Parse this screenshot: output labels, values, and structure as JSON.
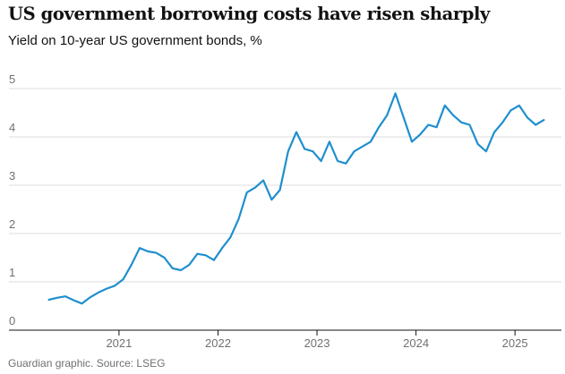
{
  "title": "US government borrowing costs have risen sharply",
  "subtitle": "Yield on 10-year US government bonds, %",
  "source": "Guardian graphic. Source: LSEG",
  "chart_data": {
    "type": "line",
    "title": "US government borrowing costs have risen sharply",
    "subtitle": "Yield on 10-year US government bonds, %",
    "xlabel": "",
    "ylabel": "",
    "x_tick_labels": [
      "2021",
      "2022",
      "2023",
      "2024",
      "2025"
    ],
    "y_tick_labels": [
      "0",
      "1",
      "2",
      "3",
      "4",
      "5"
    ],
    "xlim": [
      "2020-04",
      "2025-05"
    ],
    "ylim": [
      0,
      5
    ],
    "grid": true,
    "legend": "none",
    "series_color": "#1f8fce",
    "series": [
      {
        "x": [
          "2020-04",
          "2020-05",
          "2020-06",
          "2020-07",
          "2020-08",
          "2020-09",
          "2020-10",
          "2020-11",
          "2020-12",
          "2021-01",
          "2021-02",
          "2021-03",
          "2021-04",
          "2021-05",
          "2021-06",
          "2021-07",
          "2021-08",
          "2021-09",
          "2021-10",
          "2021-11",
          "2021-12",
          "2022-01",
          "2022-02",
          "2022-03",
          "2022-04",
          "2022-05",
          "2022-06",
          "2022-07",
          "2022-08",
          "2022-09",
          "2022-10",
          "2022-11",
          "2022-12",
          "2023-01",
          "2023-02",
          "2023-03",
          "2023-04",
          "2023-05",
          "2023-06",
          "2023-07",
          "2023-08",
          "2023-09",
          "2023-10",
          "2023-11",
          "2023-12",
          "2024-01",
          "2024-02",
          "2024-03",
          "2024-04",
          "2024-05",
          "2024-06",
          "2024-07",
          "2024-08",
          "2024-09",
          "2024-10",
          "2024-11",
          "2024-12",
          "2025-01",
          "2025-02",
          "2025-03",
          "2025-04"
        ],
        "values": [
          0.63,
          0.67,
          0.7,
          0.62,
          0.55,
          0.68,
          0.78,
          0.86,
          0.92,
          1.05,
          1.35,
          1.7,
          1.63,
          1.6,
          1.5,
          1.28,
          1.24,
          1.35,
          1.58,
          1.55,
          1.45,
          1.7,
          1.92,
          2.3,
          2.85,
          2.95,
          3.1,
          2.7,
          2.9,
          3.7,
          4.1,
          3.75,
          3.7,
          3.5,
          3.9,
          3.5,
          3.45,
          3.7,
          3.8,
          3.9,
          4.2,
          4.45,
          4.9,
          4.4,
          3.9,
          4.05,
          4.25,
          4.2,
          4.65,
          4.45,
          4.3,
          4.25,
          3.85,
          3.7,
          4.1,
          4.3,
          4.55,
          4.65,
          4.4,
          4.25,
          4.35
        ]
      }
    ]
  }
}
